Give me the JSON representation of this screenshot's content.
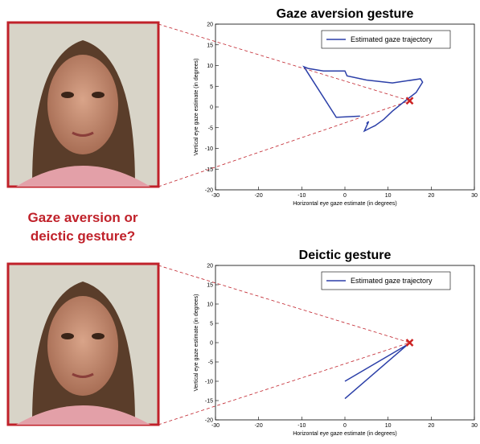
{
  "caption": [
    "Gaze aversion or",
    "deictic gesture?"
  ],
  "chart_data": [
    {
      "type": "line",
      "title": "Gaze aversion gesture",
      "xlabel": "Horizontal eye gaze estimate (in degrees)",
      "ylabel": "Vertical eye gaze estimate (in degrees)",
      "xlim": [
        -30,
        30
      ],
      "xticks": [
        -30,
        -20,
        -10,
        0,
        10,
        20,
        30
      ],
      "ylim": [
        -20,
        20
      ],
      "yticks": [
        -20,
        -15,
        -10,
        -5,
        0,
        5,
        10,
        15,
        20
      ],
      "legend": "upper right",
      "series": [
        {
          "name": "Estimated gaze trajectory",
          "color": "#2b3fa8",
          "x": [
            3.5,
            -2,
            -9.5,
            -8.5,
            -5,
            0,
            0.5,
            5,
            11,
            17.5,
            18,
            16.5,
            14,
            11,
            9,
            7,
            6,
            4.5,
            5.5,
            5
          ],
          "values": [
            -2.2,
            -2.5,
            9.7,
            9.3,
            8.7,
            8.7,
            7.5,
            6.5,
            5.8,
            6.8,
            6,
            3.5,
            1.5,
            -1,
            -3,
            -4.5,
            -5,
            -5.8,
            -3.5,
            -4
          ]
        }
      ],
      "marker": {
        "x": 15,
        "y": 1.5,
        "color": "#cc2222"
      }
    },
    {
      "type": "line",
      "title": "Deictic gesture",
      "xlabel": "Horizontal eye gaze estimate (in degrees)",
      "ylabel": "Vertical eye gaze estimate (in degrees)",
      "xlim": [
        -30,
        30
      ],
      "xticks": [
        -30,
        -20,
        -10,
        0,
        10,
        20,
        30
      ],
      "ylim": [
        -20,
        20
      ],
      "yticks": [
        -20,
        -15,
        -10,
        -5,
        0,
        5,
        10,
        15,
        20
      ],
      "legend": "upper right",
      "series": [
        {
          "name": "Estimated gaze trajectory",
          "color": "#2b3fa8",
          "x": [
            0,
            14.5,
            0
          ],
          "values": [
            -10,
            -0.5,
            -14.5
          ]
        }
      ],
      "marker": {
        "x": 15,
        "y": 0,
        "color": "#cc2222"
      }
    }
  ]
}
